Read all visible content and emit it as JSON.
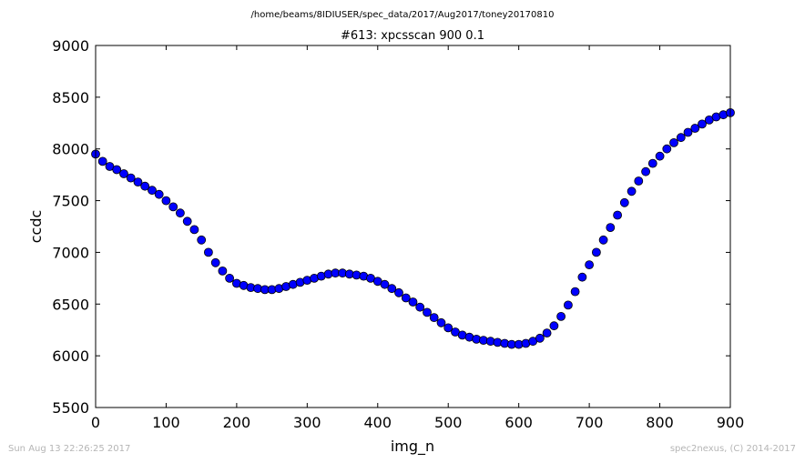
{
  "figure": {
    "suptitle": "/home/beams/8IDIUSER/spec_data/2017/Aug2017/toney20170810",
    "footer_left": "Sun Aug 13 22:26:25 2017",
    "footer_right": "spec2nexus, (C) 2014-2017"
  },
  "chart_data": {
    "type": "scatter",
    "title": "#613: xpcsscan 900 0.1",
    "xlabel": "img_n",
    "ylabel": "ccdc",
    "xlim": [
      0,
      900
    ],
    "ylim": [
      5500,
      9000
    ],
    "xticks": [
      0,
      100,
      200,
      300,
      400,
      500,
      600,
      700,
      800,
      900
    ],
    "yticks": [
      5500,
      6000,
      6500,
      7000,
      7500,
      8000,
      8500,
      9000
    ],
    "grid": false,
    "marker_color": "#0000ff",
    "x": [
      0,
      10,
      20,
      30,
      40,
      50,
      60,
      70,
      80,
      90,
      100,
      110,
      120,
      130,
      140,
      150,
      160,
      170,
      180,
      190,
      200,
      210,
      220,
      230,
      240,
      250,
      260,
      270,
      280,
      290,
      300,
      310,
      320,
      330,
      340,
      350,
      360,
      370,
      380,
      390,
      400,
      410,
      420,
      430,
      440,
      450,
      460,
      470,
      480,
      490,
      500,
      510,
      520,
      530,
      540,
      550,
      560,
      570,
      580,
      590,
      600,
      610,
      620,
      630,
      640,
      650,
      660,
      670,
      680,
      690,
      700,
      710,
      720,
      730,
      740,
      750,
      760,
      770,
      780,
      790,
      800,
      810,
      820,
      830,
      840,
      850,
      860,
      870,
      880,
      890,
      900
    ],
    "y": [
      7950,
      7880,
      7830,
      7800,
      7760,
      7720,
      7680,
      7640,
      7600,
      7560,
      7500,
      7440,
      7380,
      7300,
      7220,
      7120,
      7000,
      6900,
      6820,
      6750,
      6700,
      6680,
      6660,
      6650,
      6640,
      6640,
      6650,
      6670,
      6690,
      6710,
      6730,
      6750,
      6770,
      6790,
      6800,
      6800,
      6790,
      6780,
      6770,
      6750,
      6720,
      6690,
      6650,
      6610,
      6560,
      6520,
      6470,
      6420,
      6370,
      6320,
      6270,
      6230,
      6200,
      6180,
      6160,
      6150,
      6140,
      6130,
      6120,
      6110,
      6110,
      6120,
      6140,
      6170,
      6220,
      6290,
      6380,
      6490,
      6620,
      6760,
      6880,
      7000,
      7120,
      7240,
      7360,
      7480,
      7590,
      7690,
      7780,
      7860,
      7930,
      8000,
      8060,
      8110,
      8160,
      8200,
      8240,
      8280,
      8310,
      8330,
      8350
    ]
  }
}
